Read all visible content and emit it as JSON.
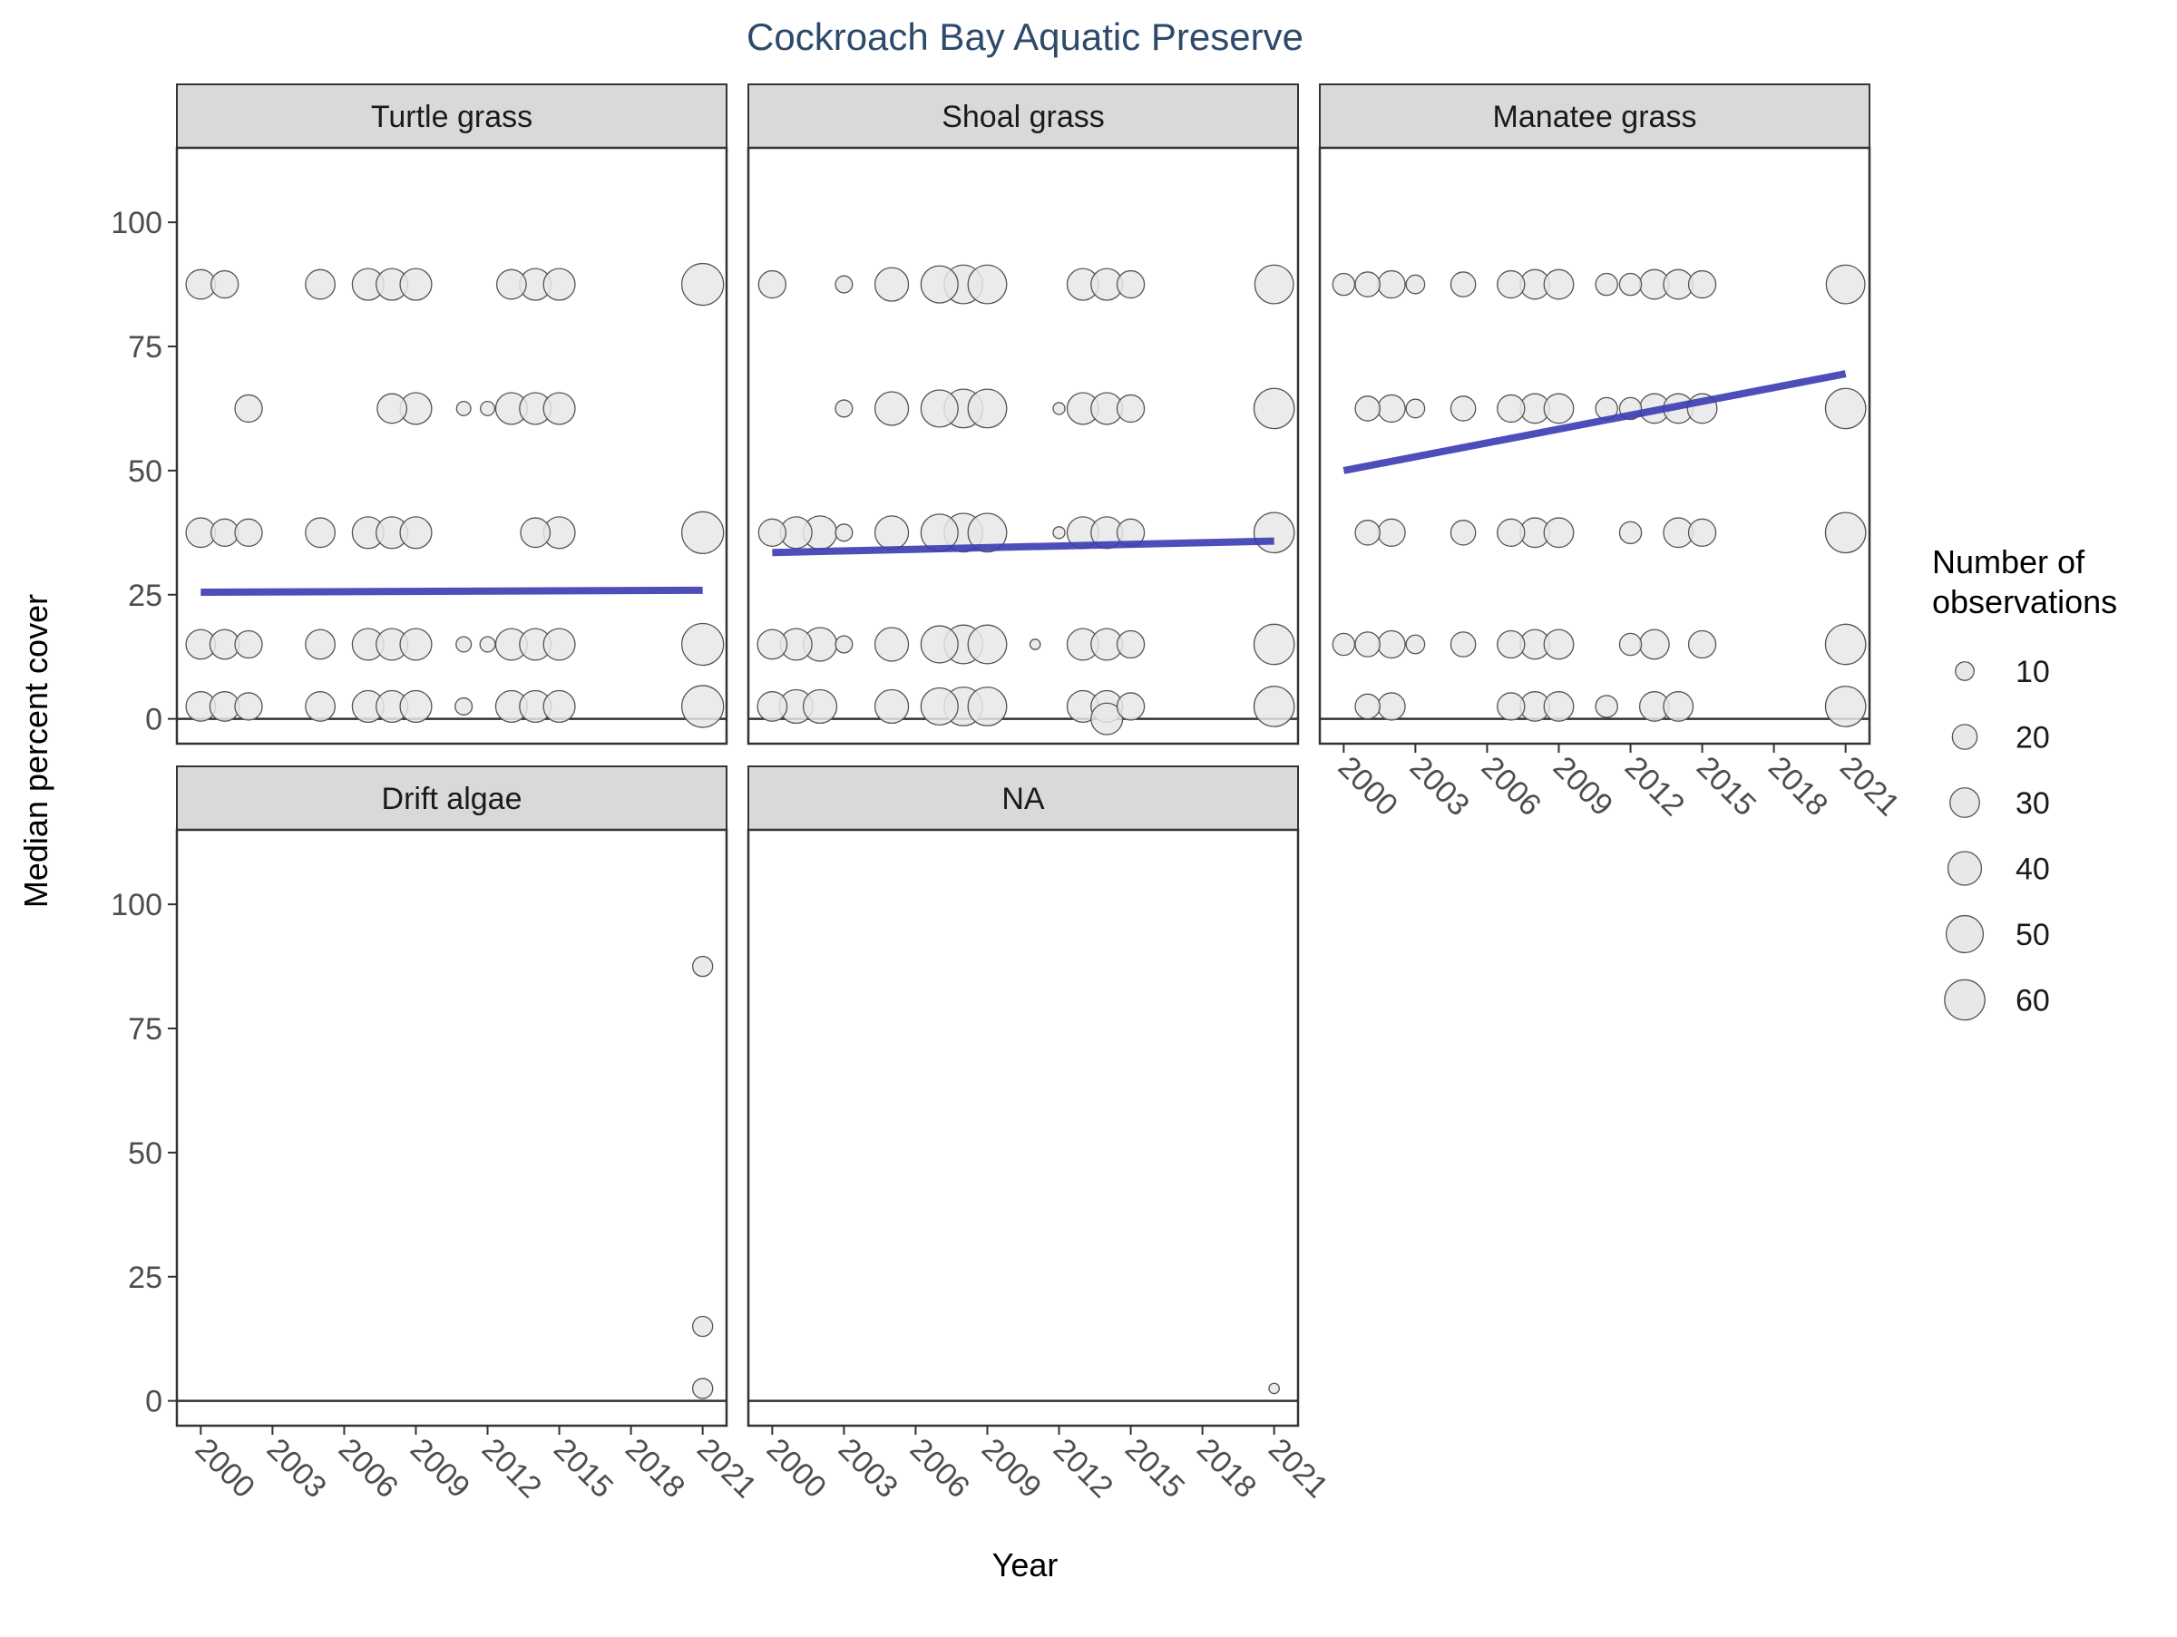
{
  "chart_data": {
    "type": "scatter",
    "title": "Cockroach Bay Aquatic Preserve",
    "xlabel": "Year",
    "ylabel": "Median percent cover",
    "xlim": [
      1999,
      2022
    ],
    "ylim": [
      -5,
      115
    ],
    "x_ticks": [
      2000,
      2003,
      2006,
      2009,
      2012,
      2015,
      2018,
      2021
    ],
    "y_ticks": [
      0,
      25,
      50,
      75,
      100
    ],
    "grid": false,
    "legend": {
      "title_lines": [
        "Number of",
        "observations"
      ],
      "position": "right",
      "entries": [
        10,
        20,
        30,
        40,
        50,
        60
      ]
    },
    "colors": {
      "points_fill": "#e8e8e8",
      "points_stroke": "#555555",
      "trend": "#3b3bb3",
      "strip": "#d9d9d9",
      "title": "#2e4a6b"
    },
    "panels": [
      {
        "name": "Turtle grass",
        "trend": {
          "x": [
            2000,
            2021
          ],
          "y": [
            25.5,
            25.9
          ]
        },
        "points": [
          {
            "x": 2000,
            "y": 87.5,
            "n": 30
          },
          {
            "x": 2001,
            "y": 87.5,
            "n": 25
          },
          {
            "x": 2005,
            "y": 87.5,
            "n": 30
          },
          {
            "x": 2007,
            "y": 87.5,
            "n": 35
          },
          {
            "x": 2008,
            "y": 87.5,
            "n": 35
          },
          {
            "x": 2009,
            "y": 87.5,
            "n": 35
          },
          {
            "x": 2013,
            "y": 87.5,
            "n": 30
          },
          {
            "x": 2014,
            "y": 87.5,
            "n": 35
          },
          {
            "x": 2015,
            "y": 87.5,
            "n": 35
          },
          {
            "x": 2021,
            "y": 87.5,
            "n": 65
          },
          {
            "x": 2002,
            "y": 62.5,
            "n": 25
          },
          {
            "x": 2008,
            "y": 62.5,
            "n": 30
          },
          {
            "x": 2009,
            "y": 62.5,
            "n": 35
          },
          {
            "x": 2011,
            "y": 62.5,
            "n": 5
          },
          {
            "x": 2012,
            "y": 62.5,
            "n": 5
          },
          {
            "x": 2013,
            "y": 62.5,
            "n": 35
          },
          {
            "x": 2014,
            "y": 62.5,
            "n": 35
          },
          {
            "x": 2015,
            "y": 62.5,
            "n": 35
          },
          {
            "x": 2000,
            "y": 37.5,
            "n": 30
          },
          {
            "x": 2001,
            "y": 37.5,
            "n": 25
          },
          {
            "x": 2002,
            "y": 37.5,
            "n": 25
          },
          {
            "x": 2005,
            "y": 37.5,
            "n": 30
          },
          {
            "x": 2007,
            "y": 37.5,
            "n": 35
          },
          {
            "x": 2008,
            "y": 37.5,
            "n": 35
          },
          {
            "x": 2009,
            "y": 37.5,
            "n": 35
          },
          {
            "x": 2014,
            "y": 37.5,
            "n": 30
          },
          {
            "x": 2015,
            "y": 37.5,
            "n": 35
          },
          {
            "x": 2021,
            "y": 37.5,
            "n": 65
          },
          {
            "x": 2000,
            "y": 15,
            "n": 30
          },
          {
            "x": 2001,
            "y": 15,
            "n": 30
          },
          {
            "x": 2002,
            "y": 15,
            "n": 25
          },
          {
            "x": 2005,
            "y": 15,
            "n": 30
          },
          {
            "x": 2007,
            "y": 15,
            "n": 35
          },
          {
            "x": 2008,
            "y": 15,
            "n": 35
          },
          {
            "x": 2009,
            "y": 15,
            "n": 35
          },
          {
            "x": 2011,
            "y": 15,
            "n": 6
          },
          {
            "x": 2012,
            "y": 15,
            "n": 6
          },
          {
            "x": 2013,
            "y": 15,
            "n": 35
          },
          {
            "x": 2014,
            "y": 15,
            "n": 35
          },
          {
            "x": 2015,
            "y": 15,
            "n": 35
          },
          {
            "x": 2021,
            "y": 15,
            "n": 65
          },
          {
            "x": 2000,
            "y": 2.5,
            "n": 30
          },
          {
            "x": 2001,
            "y": 2.5,
            "n": 30
          },
          {
            "x": 2002,
            "y": 2.5,
            "n": 25
          },
          {
            "x": 2005,
            "y": 2.5,
            "n": 30
          },
          {
            "x": 2007,
            "y": 2.5,
            "n": 35
          },
          {
            "x": 2008,
            "y": 2.5,
            "n": 35
          },
          {
            "x": 2009,
            "y": 2.5,
            "n": 35
          },
          {
            "x": 2011,
            "y": 2.5,
            "n": 8
          },
          {
            "x": 2013,
            "y": 2.5,
            "n": 35
          },
          {
            "x": 2014,
            "y": 2.5,
            "n": 35
          },
          {
            "x": 2015,
            "y": 2.5,
            "n": 35
          },
          {
            "x": 2021,
            "y": 2.5,
            "n": 65
          }
        ]
      },
      {
        "name": "Shoal grass",
        "trend": {
          "x": [
            2000,
            2021
          ],
          "y": [
            33.5,
            35.8
          ]
        },
        "points": [
          {
            "x": 2000,
            "y": 87.5,
            "n": 25
          },
          {
            "x": 2003,
            "y": 87.5,
            "n": 8
          },
          {
            "x": 2005,
            "y": 87.5,
            "n": 40
          },
          {
            "x": 2007,
            "y": 87.5,
            "n": 50
          },
          {
            "x": 2008,
            "y": 87.5,
            "n": 55
          },
          {
            "x": 2009,
            "y": 87.5,
            "n": 55
          },
          {
            "x": 2013,
            "y": 87.5,
            "n": 35
          },
          {
            "x": 2014,
            "y": 87.5,
            "n": 35
          },
          {
            "x": 2015,
            "y": 87.5,
            "n": 25
          },
          {
            "x": 2021,
            "y": 87.5,
            "n": 55
          },
          {
            "x": 2003,
            "y": 62.5,
            "n": 8
          },
          {
            "x": 2005,
            "y": 62.5,
            "n": 40
          },
          {
            "x": 2007,
            "y": 62.5,
            "n": 50
          },
          {
            "x": 2008,
            "y": 62.5,
            "n": 55
          },
          {
            "x": 2009,
            "y": 62.5,
            "n": 55
          },
          {
            "x": 2012,
            "y": 62.5,
            "n": 3
          },
          {
            "x": 2013,
            "y": 62.5,
            "n": 35
          },
          {
            "x": 2014,
            "y": 62.5,
            "n": 35
          },
          {
            "x": 2015,
            "y": 62.5,
            "n": 25
          },
          {
            "x": 2021,
            "y": 62.5,
            "n": 60
          },
          {
            "x": 2000,
            "y": 37.5,
            "n": 25
          },
          {
            "x": 2001,
            "y": 37.5,
            "n": 35
          },
          {
            "x": 2002,
            "y": 37.5,
            "n": 40
          },
          {
            "x": 2003,
            "y": 37.5,
            "n": 8
          },
          {
            "x": 2005,
            "y": 37.5,
            "n": 40
          },
          {
            "x": 2007,
            "y": 37.5,
            "n": 50
          },
          {
            "x": 2008,
            "y": 37.5,
            "n": 55
          },
          {
            "x": 2009,
            "y": 37.5,
            "n": 55
          },
          {
            "x": 2012,
            "y": 37.5,
            "n": 3
          },
          {
            "x": 2013,
            "y": 37.5,
            "n": 35
          },
          {
            "x": 2014,
            "y": 37.5,
            "n": 35
          },
          {
            "x": 2015,
            "y": 37.5,
            "n": 25
          },
          {
            "x": 2021,
            "y": 37.5,
            "n": 60
          },
          {
            "x": 2000,
            "y": 15,
            "n": 30
          },
          {
            "x": 2001,
            "y": 15,
            "n": 35
          },
          {
            "x": 2002,
            "y": 15,
            "n": 40
          },
          {
            "x": 2003,
            "y": 15,
            "n": 8
          },
          {
            "x": 2005,
            "y": 15,
            "n": 40
          },
          {
            "x": 2007,
            "y": 15,
            "n": 50
          },
          {
            "x": 2008,
            "y": 15,
            "n": 55
          },
          {
            "x": 2009,
            "y": 15,
            "n": 55
          },
          {
            "x": 2011,
            "y": 15,
            "n": 2
          },
          {
            "x": 2013,
            "y": 15,
            "n": 35
          },
          {
            "x": 2014,
            "y": 15,
            "n": 35
          },
          {
            "x": 2015,
            "y": 15,
            "n": 25
          },
          {
            "x": 2021,
            "y": 15,
            "n": 60
          },
          {
            "x": 2000,
            "y": 2.5,
            "n": 30
          },
          {
            "x": 2001,
            "y": 2.5,
            "n": 40
          },
          {
            "x": 2002,
            "y": 2.5,
            "n": 40
          },
          {
            "x": 2005,
            "y": 2.5,
            "n": 40
          },
          {
            "x": 2007,
            "y": 2.5,
            "n": 50
          },
          {
            "x": 2008,
            "y": 2.5,
            "n": 55
          },
          {
            "x": 2009,
            "y": 2.5,
            "n": 55
          },
          {
            "x": 2013,
            "y": 2.5,
            "n": 35
          },
          {
            "x": 2014,
            "y": 2.5,
            "n": 35
          },
          {
            "x": 2015,
            "y": 2.5,
            "n": 25
          },
          {
            "x": 2021,
            "y": 2.5,
            "n": 60
          },
          {
            "x": 2014,
            "y": 0,
            "n": 35
          }
        ]
      },
      {
        "name": "Manatee grass",
        "trend": {
          "x": [
            2000,
            2021
          ],
          "y": [
            50,
            69.5
          ]
        },
        "points": [
          {
            "x": 2000,
            "y": 87.5,
            "n": 15
          },
          {
            "x": 2001,
            "y": 87.5,
            "n": 20
          },
          {
            "x": 2002,
            "y": 87.5,
            "n": 25
          },
          {
            "x": 2003,
            "y": 87.5,
            "n": 10
          },
          {
            "x": 2005,
            "y": 87.5,
            "n": 20
          },
          {
            "x": 2007,
            "y": 87.5,
            "n": 25
          },
          {
            "x": 2008,
            "y": 87.5,
            "n": 30
          },
          {
            "x": 2009,
            "y": 87.5,
            "n": 30
          },
          {
            "x": 2011,
            "y": 87.5,
            "n": 15
          },
          {
            "x": 2012,
            "y": 87.5,
            "n": 15
          },
          {
            "x": 2013,
            "y": 87.5,
            "n": 30
          },
          {
            "x": 2014,
            "y": 87.5,
            "n": 30
          },
          {
            "x": 2015,
            "y": 87.5,
            "n": 25
          },
          {
            "x": 2021,
            "y": 87.5,
            "n": 55
          },
          {
            "x": 2001,
            "y": 62.5,
            "n": 20
          },
          {
            "x": 2002,
            "y": 62.5,
            "n": 25
          },
          {
            "x": 2003,
            "y": 62.5,
            "n": 10
          },
          {
            "x": 2005,
            "y": 62.5,
            "n": 20
          },
          {
            "x": 2007,
            "y": 62.5,
            "n": 25
          },
          {
            "x": 2008,
            "y": 62.5,
            "n": 30
          },
          {
            "x": 2009,
            "y": 62.5,
            "n": 30
          },
          {
            "x": 2011,
            "y": 62.5,
            "n": 15
          },
          {
            "x": 2012,
            "y": 62.5,
            "n": 15
          },
          {
            "x": 2013,
            "y": 62.5,
            "n": 30
          },
          {
            "x": 2014,
            "y": 62.5,
            "n": 30
          },
          {
            "x": 2015,
            "y": 62.5,
            "n": 30
          },
          {
            "x": 2021,
            "y": 62.5,
            "n": 60
          },
          {
            "x": 2001,
            "y": 37.5,
            "n": 20
          },
          {
            "x": 2002,
            "y": 37.5,
            "n": 25
          },
          {
            "x": 2005,
            "y": 37.5,
            "n": 20
          },
          {
            "x": 2007,
            "y": 37.5,
            "n": 25
          },
          {
            "x": 2008,
            "y": 37.5,
            "n": 30
          },
          {
            "x": 2009,
            "y": 37.5,
            "n": 30
          },
          {
            "x": 2012,
            "y": 37.5,
            "n": 15
          },
          {
            "x": 2014,
            "y": 37.5,
            "n": 30
          },
          {
            "x": 2015,
            "y": 37.5,
            "n": 25
          },
          {
            "x": 2021,
            "y": 37.5,
            "n": 60
          },
          {
            "x": 2000,
            "y": 15,
            "n": 15
          },
          {
            "x": 2001,
            "y": 15,
            "n": 20
          },
          {
            "x": 2002,
            "y": 15,
            "n": 25
          },
          {
            "x": 2003,
            "y": 15,
            "n": 10
          },
          {
            "x": 2005,
            "y": 15,
            "n": 20
          },
          {
            "x": 2007,
            "y": 15,
            "n": 25
          },
          {
            "x": 2008,
            "y": 15,
            "n": 30
          },
          {
            "x": 2009,
            "y": 15,
            "n": 30
          },
          {
            "x": 2012,
            "y": 15,
            "n": 15
          },
          {
            "x": 2013,
            "y": 15,
            "n": 30
          },
          {
            "x": 2015,
            "y": 15,
            "n": 25
          },
          {
            "x": 2021,
            "y": 15,
            "n": 60
          },
          {
            "x": 2001,
            "y": 2.5,
            "n": 20
          },
          {
            "x": 2002,
            "y": 2.5,
            "n": 25
          },
          {
            "x": 2007,
            "y": 2.5,
            "n": 25
          },
          {
            "x": 2008,
            "y": 2.5,
            "n": 30
          },
          {
            "x": 2009,
            "y": 2.5,
            "n": 30
          },
          {
            "x": 2011,
            "y": 2.5,
            "n": 15
          },
          {
            "x": 2013,
            "y": 2.5,
            "n": 30
          },
          {
            "x": 2014,
            "y": 2.5,
            "n": 30
          },
          {
            "x": 2021,
            "y": 2.5,
            "n": 60
          }
        ]
      },
      {
        "name": "Drift algae",
        "trend": null,
        "points": [
          {
            "x": 2021,
            "y": 87.5,
            "n": 12
          },
          {
            "x": 2021,
            "y": 15,
            "n": 12
          },
          {
            "x": 2021,
            "y": 2.5,
            "n": 12
          }
        ]
      },
      {
        "name": "NA",
        "trend": null,
        "points": [
          {
            "x": 2021,
            "y": 2.5,
            "n": 2
          }
        ]
      }
    ]
  }
}
